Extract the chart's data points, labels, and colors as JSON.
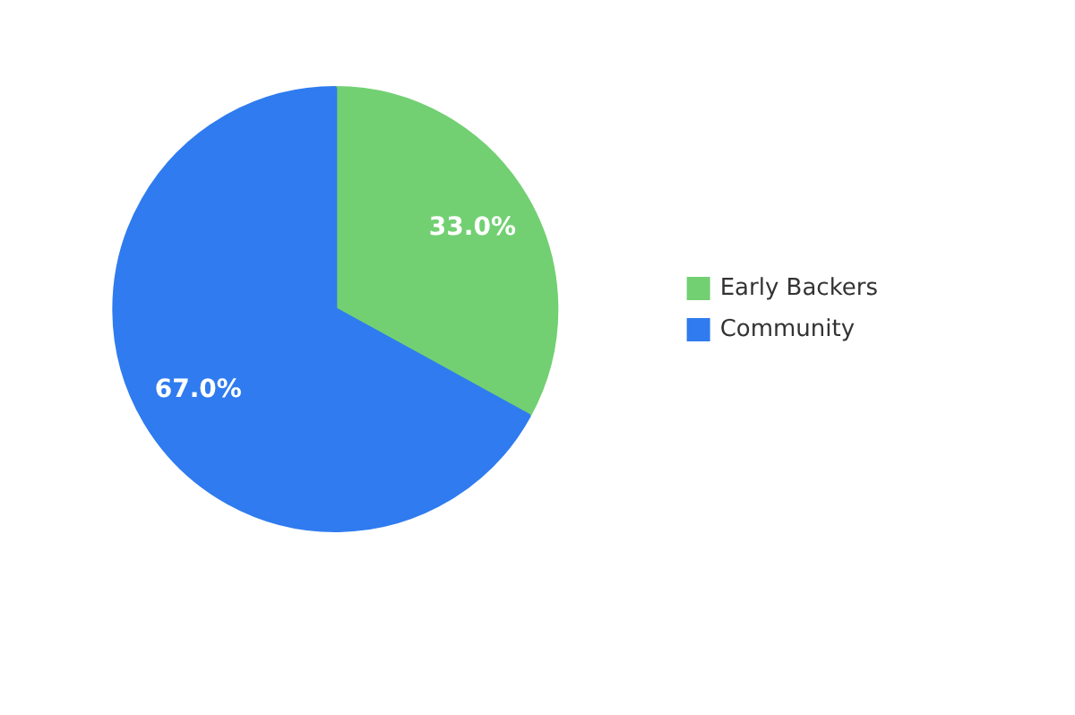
{
  "chart_data": {
    "type": "pie",
    "categories": [
      "Early Backers",
      "Community"
    ],
    "values": [
      33,
      67
    ],
    "colors": [
      "#72d072",
      "#2f7bef"
    ],
    "value_labels": [
      "33.0%",
      "67.0%"
    ],
    "legend": "right"
  }
}
